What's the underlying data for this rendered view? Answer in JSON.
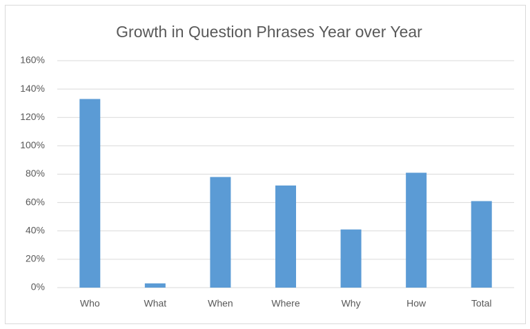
{
  "chart_data": {
    "type": "bar",
    "title": "Growth in Question Phrases Year over Year",
    "categories": [
      "Who",
      "What",
      "When",
      "Where",
      "Why",
      "How",
      "Total"
    ],
    "values": [
      133,
      3,
      78,
      72,
      41,
      81,
      61
    ],
    "color": "#5b9bd5",
    "ylim": [
      0,
      160
    ],
    "yticks": [
      {
        "value": 0,
        "label": "0%"
      },
      {
        "value": 20,
        "label": "20%"
      },
      {
        "value": 40,
        "label": "40%"
      },
      {
        "value": 60,
        "label": "60%"
      },
      {
        "value": 80,
        "label": "80%"
      },
      {
        "value": 100,
        "label": "100%"
      },
      {
        "value": 120,
        "label": "120%"
      },
      {
        "value": 140,
        "label": "140%"
      },
      {
        "value": 160,
        "label": "160%"
      }
    ],
    "grid": true
  }
}
